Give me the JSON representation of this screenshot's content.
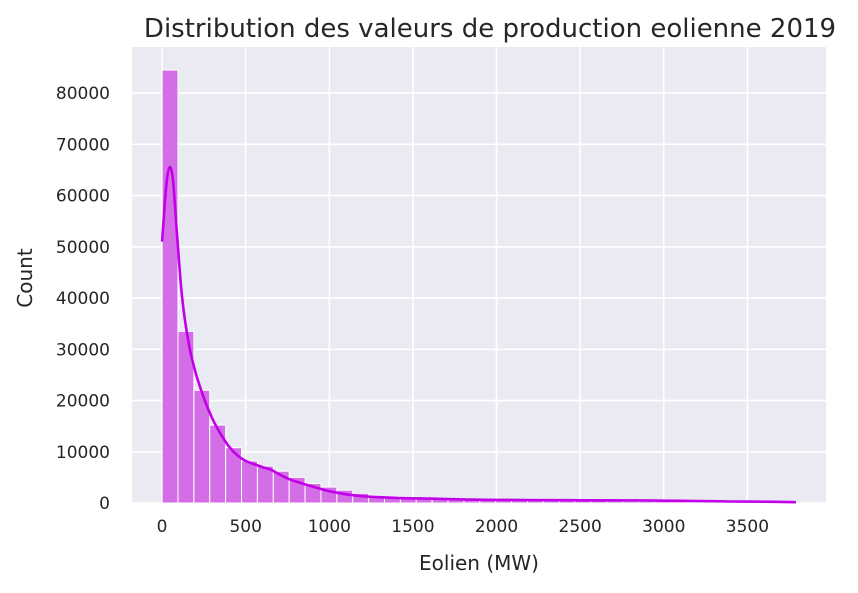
{
  "chart_data": {
    "type": "bar",
    "title": "Distribution des valeurs de production eolienne 2019",
    "xlabel": "Eolien (MW)",
    "ylabel": "Count",
    "xlim": [
      -180,
      3970
    ],
    "ylim": [
      0,
      89000
    ],
    "x_ticks": [
      0,
      500,
      1000,
      1500,
      2000,
      2500,
      3000,
      3500
    ],
    "y_ticks": [
      0,
      10000,
      20000,
      30000,
      40000,
      50000,
      60000,
      70000,
      80000
    ],
    "grid": true,
    "bin_width": 95,
    "bin_start": 0,
    "bins": [
      84500,
      33500,
      22000,
      15200,
      10800,
      8200,
      7200,
      6200,
      5000,
      3800,
      3100,
      2500,
      1900,
      1500,
      1200,
      1000,
      900,
      800,
      700,
      650,
      600,
      550,
      500,
      480,
      450,
      420,
      400,
      380,
      360,
      340,
      320,
      300,
      280,
      260,
      240,
      220,
      200,
      180,
      160,
      140
    ],
    "kde_x": [
      0,
      25,
      45,
      65,
      90,
      120,
      160,
      200,
      250,
      300,
      350,
      400,
      450,
      500,
      550,
      600,
      650,
      700,
      750,
      800,
      900,
      1000,
      1100,
      1200,
      1400,
      1600,
      1800,
      2000,
      2400,
      2800,
      3000,
      3200,
      3400,
      3600,
      3790
    ],
    "kde_y": [
      51000,
      62000,
      65500,
      63000,
      52000,
      40000,
      31000,
      25500,
      20500,
      16500,
      13500,
      11000,
      9300,
      8200,
      7600,
      7000,
      6500,
      5600,
      4800,
      4200,
      3200,
      2300,
      1700,
      1300,
      1000,
      850,
      700,
      600,
      550,
      500,
      450,
      400,
      300,
      250,
      150
    ],
    "bar_color": "#d46ee6",
    "bar_edge_color": "#ffffff",
    "kde_color": "#c100e8",
    "background_color": "#eaeaf2",
    "grid_color": "#ffffff"
  }
}
